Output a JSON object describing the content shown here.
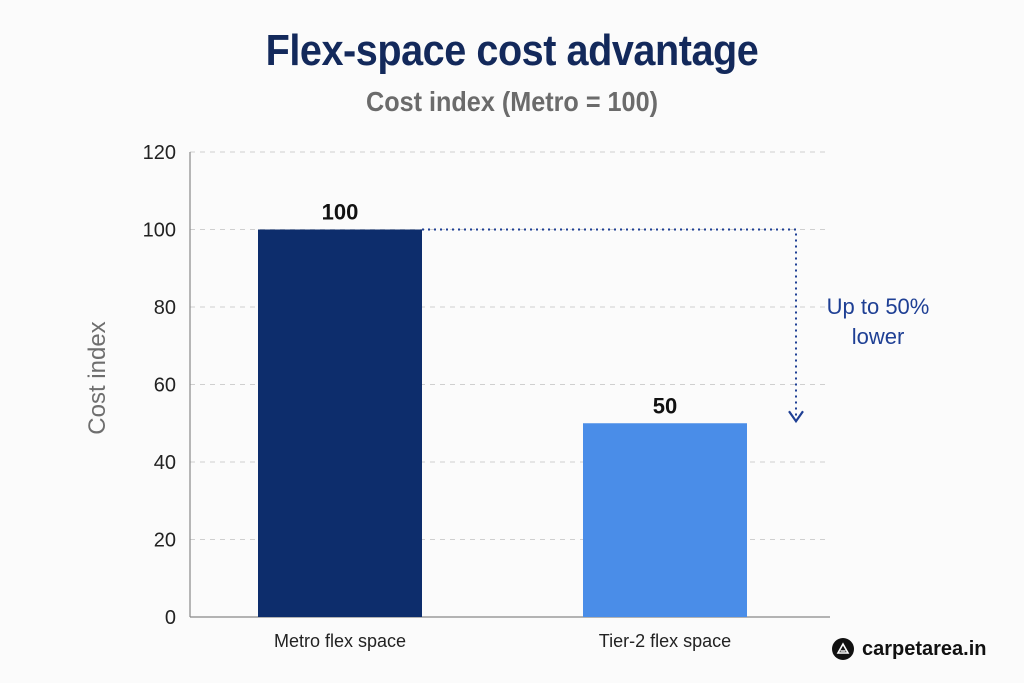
{
  "chart_data": {
    "type": "bar",
    "title": "Flex-space cost advantage",
    "subtitle": "Cost index (Metro = 100)",
    "ylabel": "Cost index",
    "xlabel": "",
    "categories": [
      "Metro flex space",
      "Tier-2 flex space"
    ],
    "values": [
      100,
      50
    ],
    "data_labels": [
      "100",
      "50"
    ],
    "bar_colors": [
      "#0d2d6c",
      "#4a8de8"
    ],
    "ylim": [
      0,
      120
    ],
    "yticks": [
      0,
      20,
      40,
      60,
      80,
      100,
      120
    ],
    "grid": true,
    "annotation": {
      "line1": "Up to 50%",
      "line2": "lower",
      "from_value": 100,
      "to_value": 50,
      "color": "#1e3f94"
    }
  },
  "brand": {
    "name": "carpetarea.in",
    "icon": "carpetarea-logo-icon"
  },
  "colors": {
    "title": "#13295b",
    "subtitle": "#6b6b6b",
    "axis_text": "#222222",
    "grid": "#cfcfcf",
    "axis": "#888888"
  }
}
